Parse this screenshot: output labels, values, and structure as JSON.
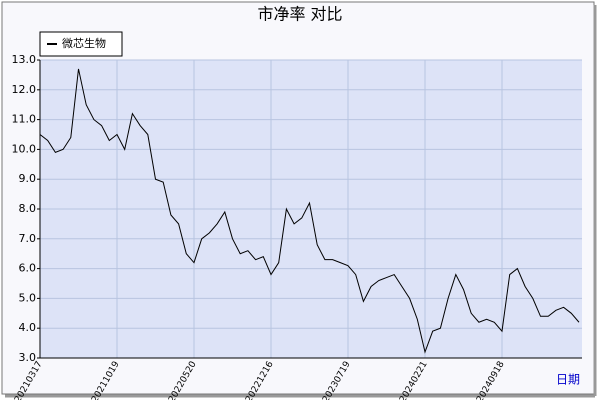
{
  "chart_data": {
    "type": "line",
    "title": "市净率  对比",
    "x_label": "日期",
    "categories": [
      "20210317",
      null,
      null,
      null,
      null,
      null,
      null,
      null,
      null,
      null,
      "20211019",
      null,
      null,
      null,
      null,
      null,
      null,
      null,
      null,
      null,
      "20220520",
      null,
      null,
      null,
      null,
      null,
      null,
      null,
      null,
      null,
      "20221216",
      null,
      null,
      null,
      null,
      null,
      null,
      null,
      null,
      null,
      "20230719",
      null,
      null,
      null,
      null,
      null,
      null,
      null,
      null,
      null,
      "20240221",
      null,
      null,
      null,
      null,
      null,
      null,
      null,
      null,
      null,
      "20240918",
      null,
      null,
      null,
      null,
      null,
      null,
      null,
      null,
      null,
      null
    ],
    "series": [
      {
        "name": "微芯生物",
        "color": "#000000",
        "values": [
          10.5,
          10.3,
          9.9,
          10.0,
          10.4,
          12.7,
          11.5,
          11.0,
          10.8,
          10.3,
          10.5,
          10.0,
          11.2,
          10.8,
          10.5,
          9.0,
          8.9,
          7.8,
          7.5,
          6.5,
          6.2,
          7.0,
          7.2,
          7.5,
          7.9,
          7.0,
          6.5,
          6.6,
          6.3,
          6.4,
          5.8,
          6.2,
          8.0,
          7.5,
          7.7,
          8.2,
          6.8,
          6.3,
          6.3,
          6.2,
          6.1,
          5.8,
          4.9,
          5.4,
          5.6,
          5.7,
          5.8,
          5.4,
          5.0,
          4.3,
          3.2,
          3.9,
          4.0,
          5.0,
          5.8,
          5.3,
          4.5,
          4.2,
          4.3,
          4.2,
          3.9,
          5.8,
          6.0,
          5.4,
          5.0,
          4.4,
          4.4,
          4.6,
          4.7,
          4.5,
          4.2
        ]
      }
    ],
    "ylim": [
      3,
      13
    ],
    "yticks": [
      {
        "value": 3,
        "label": "3.0"
      },
      {
        "value": 4,
        "label": "4.0"
      },
      {
        "value": 5,
        "label": "5.0"
      },
      {
        "value": 6,
        "label": "6.0"
      },
      {
        "value": 7,
        "label": "7.0"
      },
      {
        "value": 8,
        "label": "8.0"
      },
      {
        "value": 9,
        "label": "9.0"
      },
      {
        "value": 10,
        "label": "10.0"
      },
      {
        "value": 11,
        "label": "11.0"
      },
      {
        "value": 12,
        "label": "12.0"
      },
      {
        "value": 13,
        "label": "13.0"
      }
    ],
    "grid": true,
    "legend": "top-left"
  }
}
